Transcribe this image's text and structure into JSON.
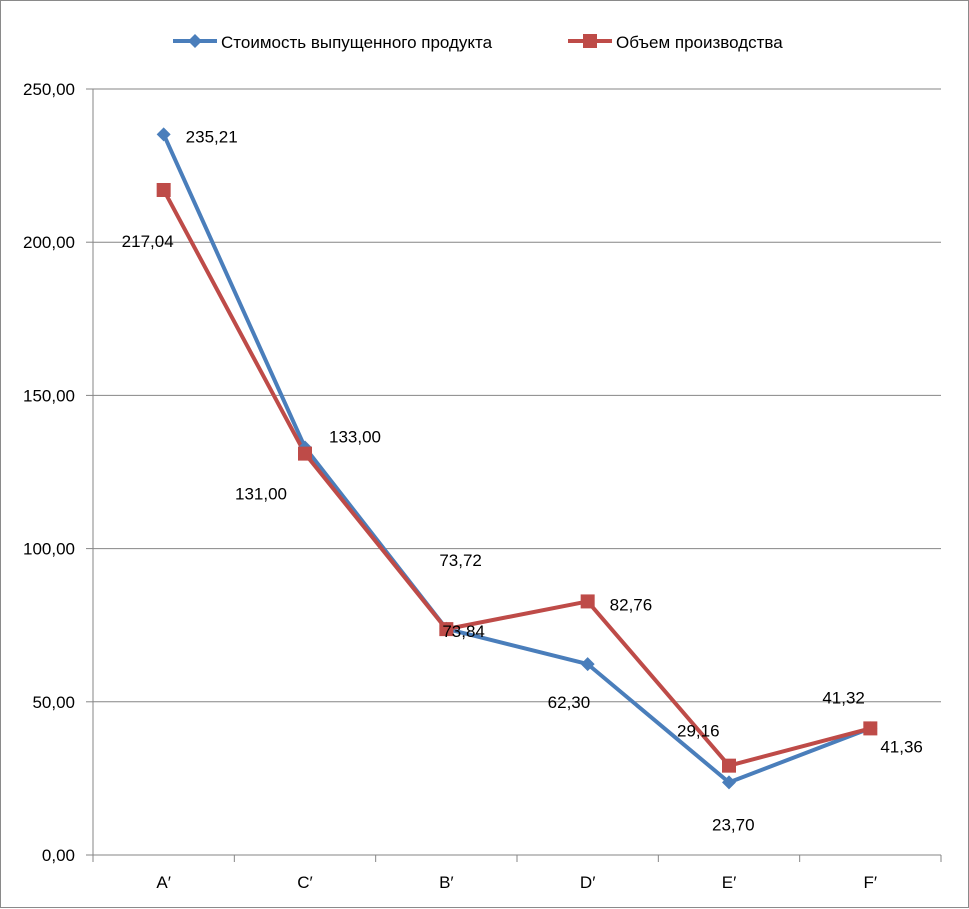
{
  "chart_data": {
    "type": "line",
    "categories": [
      "A′",
      "C′",
      "B′",
      "D′",
      "E′",
      "F′"
    ],
    "ylim": [
      0,
      250
    ],
    "yticks": [
      "0,00",
      "50,00",
      "100,00",
      "150,00",
      "200,00",
      "250,00"
    ],
    "grid": true,
    "legend_position": "top",
    "series": [
      {
        "name": "Стоимость выпущенного продукта",
        "color": "#4a7ebb",
        "marker": "diamond",
        "values": [
          235.21,
          133.0,
          73.84,
          62.3,
          23.7,
          41.36
        ],
        "labels": [
          "235,21",
          "133,00",
          "73,84",
          "62,30",
          "23,70",
          "41,36"
        ]
      },
      {
        "name": "Объем производства",
        "color": "#be4b48",
        "marker": "square",
        "values": [
          217.04,
          131.0,
          73.72,
          82.76,
          29.16,
          41.32
        ],
        "labels": [
          "217,04",
          "131,00",
          "73,72",
          "82,76",
          "29,16",
          "41,32"
        ]
      }
    ]
  }
}
